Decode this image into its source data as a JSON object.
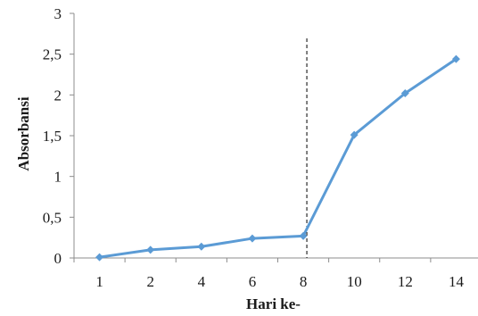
{
  "chart_data": {
    "type": "line",
    "xlabel": "Hari ke-",
    "ylabel": "Absorbansi",
    "x": [
      "1",
      "2",
      "4",
      "6",
      "8",
      "10",
      "12",
      "14"
    ],
    "y_tick_labels": [
      "0",
      "0,5",
      "1",
      "1,5",
      "2",
      "2,5",
      "3"
    ],
    "ylim": [
      0,
      3
    ],
    "series": [
      {
        "values": [
          0.01,
          0.1,
          0.14,
          0.24,
          0.27,
          1.51,
          2.02,
          2.44
        ],
        "color": "#5b9bd5",
        "marker": "diamond"
      }
    ],
    "vertical_marker": {
      "between_categories": [
        "8",
        "10"
      ],
      "style": "dashed",
      "color": "#000000"
    },
    "grid": false,
    "legend": "none"
  }
}
